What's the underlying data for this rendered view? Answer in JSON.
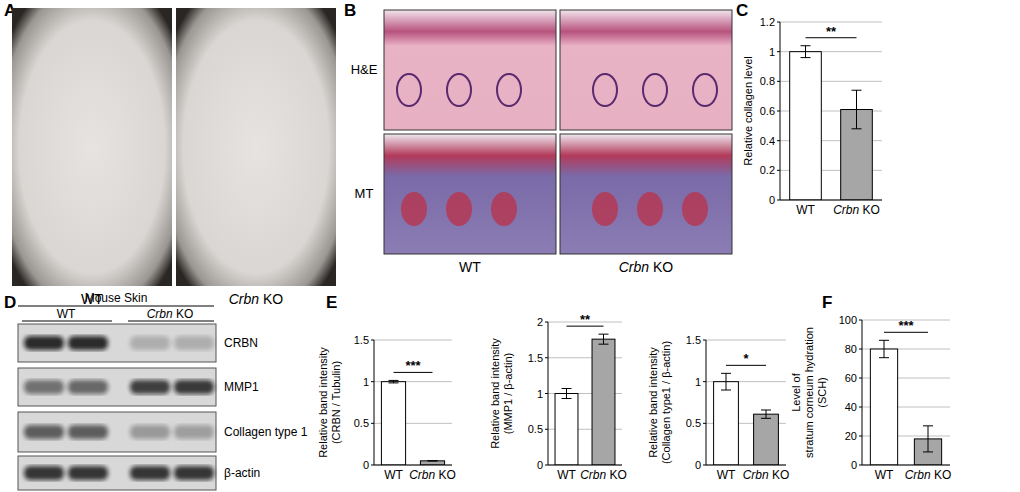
{
  "panel_labels": [
    "A",
    "B",
    "C",
    "D",
    "E",
    "F"
  ],
  "panel_a": {
    "labels": [
      "WT",
      "Crbn KO"
    ]
  },
  "panel_b": {
    "row_labels": [
      "H&E",
      "MT"
    ],
    "column_labels": [
      "WT",
      "Crbn KO"
    ]
  },
  "panel_d": {
    "title": "Mouse Skin",
    "group_labels": [
      "WT",
      "Crbn KO"
    ],
    "row_labels": [
      "CRBN",
      "MMP1",
      "Collagen type 1",
      "β-actin"
    ]
  },
  "chart_data": [
    {
      "type": "bar",
      "ylabel": [
        "Relative collagen level"
      ],
      "categories": [
        "WT",
        "Crbn KO"
      ],
      "values": [
        1.0,
        0.61
      ],
      "errors": [
        0.04,
        0.13
      ],
      "colors": [
        "#ffffff",
        "#a6a6a6"
      ],
      "ylim": [
        0,
        1.2
      ],
      "yticks": [
        0,
        0.2,
        0.4,
        0.6,
        0.8,
        1,
        1.2
      ],
      "grid": true,
      "annotations": [
        "**"
      ]
    },
    {
      "type": "bar",
      "ylabel": [
        "Relative band intensity",
        "(CRBN / Tubulin)"
      ],
      "categories": [
        "WT",
        "Crbn KO"
      ],
      "values": [
        1.0,
        0.05
      ],
      "errors": [
        0.015,
        0
      ],
      "colors": [
        "#ffffff",
        "#a6a6a6"
      ],
      "ylim": [
        0,
        1.5
      ],
      "yticks": [
        0,
        0.5,
        1,
        1.5
      ],
      "grid": true,
      "annotations": [
        "***"
      ]
    },
    {
      "type": "bar",
      "ylabel": [
        "Relative band intensity",
        "(MMP1 / β-actin)"
      ],
      "categories": [
        "WT",
        "Crbn KO"
      ],
      "values": [
        1.0,
        1.76
      ],
      "errors": [
        0.07,
        0.07
      ],
      "colors": [
        "#ffffff",
        "#a6a6a6"
      ],
      "ylim": [
        0,
        2
      ],
      "yticks": [
        0,
        0.5,
        1,
        1.5,
        2
      ],
      "grid": true,
      "annotations": [
        "**"
      ]
    },
    {
      "type": "bar",
      "ylabel": [
        "Relative band intensity",
        "(Collagen type1 / β-actin)"
      ],
      "categories": [
        "WT",
        "Crbn KO"
      ],
      "values": [
        1.0,
        0.61
      ],
      "errors": [
        0.1,
        0.05
      ],
      "colors": [
        "#ffffff",
        "#a6a6a6"
      ],
      "ylim": [
        0,
        1.5
      ],
      "yticks": [
        0,
        0.5,
        1,
        1.5
      ],
      "grid": true,
      "annotations": [
        "*"
      ]
    },
    {
      "type": "bar",
      "ylabel": [
        "Level of",
        "stratum corneum hydration",
        "(SCH)"
      ],
      "categories": [
        "WT",
        "Crbn KO"
      ],
      "values": [
        80,
        18
      ],
      "errors": [
        6,
        9
      ],
      "colors": [
        "#ffffff",
        "#a6a6a6"
      ],
      "ylim": [
        0,
        100
      ],
      "yticks": [
        0,
        20,
        40,
        60,
        80,
        100
      ],
      "grid": true,
      "annotations": [
        "***"
      ]
    }
  ]
}
